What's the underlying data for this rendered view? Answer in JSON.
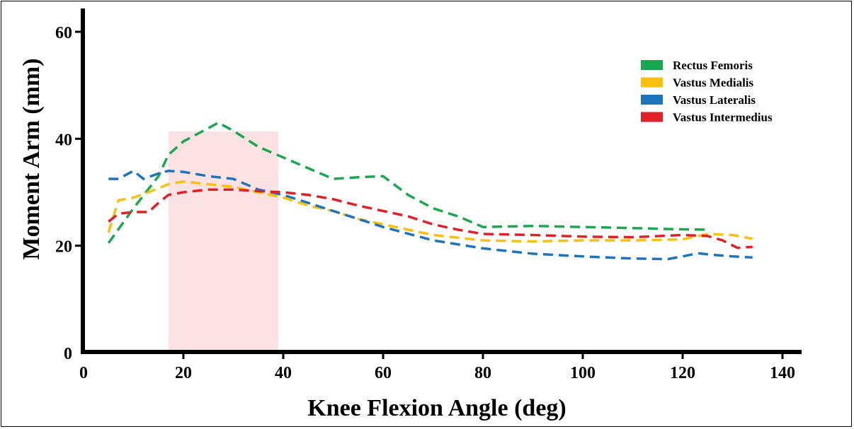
{
  "chart_data": {
    "type": "line",
    "title": "",
    "xlabel": "Knee Flexion Angle (deg)",
    "ylabel": "Moment Arm (mm)",
    "xlim": [
      0,
      140
    ],
    "ylim": [
      0,
      64
    ],
    "xticks": [
      0,
      20,
      40,
      60,
      80,
      100,
      120,
      140
    ],
    "yticks": [
      0,
      20,
      40,
      60
    ],
    "grid": false,
    "legend_position": "top-right",
    "shaded_region": {
      "x_start": 17,
      "x_end": 39,
      "color": "#fde2e4"
    },
    "series": [
      {
        "name": "Rectus Femoris",
        "color": "#1aa84f",
        "points": [
          [
            5,
            20.5
          ],
          [
            10,
            27
          ],
          [
            15,
            33
          ],
          [
            17,
            37
          ],
          [
            20,
            39.5
          ],
          [
            25,
            42
          ],
          [
            27,
            43
          ],
          [
            30,
            41.5
          ],
          [
            35,
            38.5
          ],
          [
            40,
            36.5
          ],
          [
            45,
            34.5
          ],
          [
            50,
            32.5
          ],
          [
            55,
            32.8
          ],
          [
            60,
            33
          ],
          [
            65,
            29.5
          ],
          [
            70,
            27
          ],
          [
            75,
            25.5
          ],
          [
            80,
            23.5
          ],
          [
            90,
            23.7
          ],
          [
            100,
            23.5
          ],
          [
            110,
            23.3
          ],
          [
            118,
            23.1
          ],
          [
            125,
            23
          ]
        ]
      },
      {
        "name": "Vastus Medialis",
        "color": "#fbbf0f",
        "points": [
          [
            5,
            22.5
          ],
          [
            7,
            28.5
          ],
          [
            10,
            29
          ],
          [
            13,
            30
          ],
          [
            17,
            31.5
          ],
          [
            20,
            32
          ],
          [
            25,
            31.5
          ],
          [
            30,
            31
          ],
          [
            35,
            30
          ],
          [
            40,
            29
          ],
          [
            45,
            27.5
          ],
          [
            50,
            26.5
          ],
          [
            55,
            25
          ],
          [
            60,
            24
          ],
          [
            70,
            22
          ],
          [
            80,
            21
          ],
          [
            90,
            20.8
          ],
          [
            100,
            21
          ],
          [
            110,
            21
          ],
          [
            120,
            21.2
          ],
          [
            125,
            22.2
          ],
          [
            130,
            22
          ],
          [
            134,
            21.3
          ]
        ]
      },
      {
        "name": "Vastus Lateralis",
        "color": "#1c75bc",
        "points": [
          [
            5,
            32.5
          ],
          [
            7,
            32.5
          ],
          [
            10,
            34
          ],
          [
            12,
            32.5
          ],
          [
            15,
            33.5
          ],
          [
            17,
            34
          ],
          [
            20,
            33.8
          ],
          [
            25,
            33
          ],
          [
            30,
            32.5
          ],
          [
            35,
            30.5
          ],
          [
            40,
            29.5
          ],
          [
            45,
            28
          ],
          [
            50,
            26.5
          ],
          [
            55,
            25
          ],
          [
            60,
            23.5
          ],
          [
            70,
            21
          ],
          [
            80,
            19.5
          ],
          [
            90,
            18.5
          ],
          [
            100,
            18
          ],
          [
            110,
            17.6
          ],
          [
            117,
            17.5
          ],
          [
            120,
            18
          ],
          [
            123,
            18.6
          ],
          [
            126,
            18.3
          ],
          [
            130,
            18
          ],
          [
            134,
            17.8
          ]
        ]
      },
      {
        "name": "Vastus Intermedius",
        "color": "#e31f26",
        "points": [
          [
            5,
            24.5
          ],
          [
            7,
            26
          ],
          [
            10,
            26.3
          ],
          [
            13,
            26.3
          ],
          [
            15,
            28
          ],
          [
            17,
            29.5
          ],
          [
            20,
            30
          ],
          [
            25,
            30.5
          ],
          [
            30,
            30.5
          ],
          [
            35,
            30.2
          ],
          [
            40,
            30
          ],
          [
            45,
            29.5
          ],
          [
            50,
            28.7
          ],
          [
            55,
            27.5
          ],
          [
            60,
            26.5
          ],
          [
            65,
            25.5
          ],
          [
            70,
            24
          ],
          [
            75,
            23
          ],
          [
            80,
            22.2
          ],
          [
            90,
            22
          ],
          [
            100,
            21.7
          ],
          [
            110,
            21.6
          ],
          [
            120,
            22
          ],
          [
            125,
            21.8
          ],
          [
            128,
            21
          ],
          [
            131,
            19.6
          ],
          [
            134,
            19.8
          ]
        ]
      }
    ]
  }
}
